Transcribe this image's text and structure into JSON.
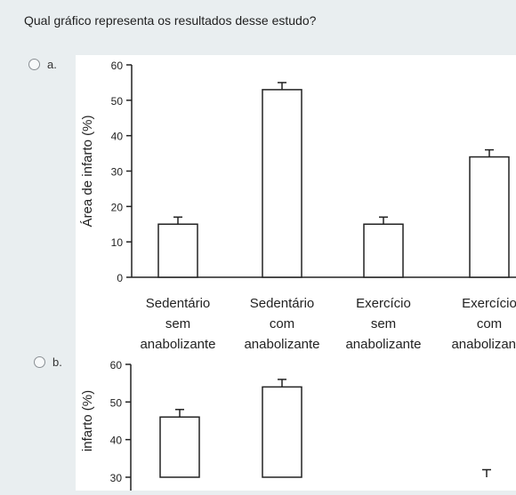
{
  "question": "Qual gráfico representa os resultados desse estudo?",
  "options": [
    {
      "letter": "a."
    },
    {
      "letter": "b."
    }
  ],
  "chart_data": [
    {
      "type": "bar",
      "ylabel": "Área de infarto (%)",
      "ylim": [
        0,
        60
      ],
      "yticks": [
        0,
        10,
        20,
        30,
        40,
        50,
        60
      ],
      "categories": [
        [
          "Sedentário",
          "sem",
          "anabolizante"
        ],
        [
          "Sedentário",
          "com",
          "anabolizante"
        ],
        [
          "Exercício",
          "sem",
          "anabolizante"
        ],
        [
          "Exercício",
          "com",
          "anabolizante"
        ]
      ],
      "values": [
        15,
        53,
        15,
        34
      ],
      "errors": [
        2,
        2,
        2,
        2
      ]
    },
    {
      "type": "bar",
      "ylabel": "infarto (%)",
      "ylim": [
        30,
        60
      ],
      "yticks": [
        30,
        40,
        50,
        60
      ],
      "values": [
        46,
        54,
        null,
        30
      ],
      "errors": [
        2,
        2,
        null,
        2
      ]
    }
  ]
}
